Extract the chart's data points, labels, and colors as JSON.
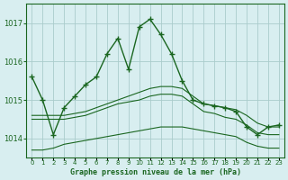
{
  "title": "Graphe pression niveau de la mer (hPa)",
  "background_color": "#d8eef0",
  "grid_color": "#aacccc",
  "line_color": "#1a6620",
  "x_labels": [
    "0",
    "1",
    "2",
    "3",
    "4",
    "5",
    "6",
    "7",
    "8",
    "9",
    "10",
    "11",
    "12",
    "13",
    "14",
    "15",
    "16",
    "17",
    "18",
    "19",
    "20",
    "21",
    "22",
    "23"
  ],
  "ylim": [
    1013.5,
    1017.5
  ],
  "yticks": [
    1014,
    1015,
    1016,
    1017
  ],
  "main_series": [
    1015.6,
    1015.0,
    1014.1,
    1014.8,
    1015.1,
    1015.4,
    1015.6,
    1016.2,
    1016.6,
    1015.8,
    1016.9,
    1017.1,
    1016.7,
    1016.2,
    1015.5,
    1015.0,
    1014.9,
    1014.85,
    1014.8,
    1014.7,
    1014.3,
    1014.1,
    1014.3,
    1014.35
  ],
  "flat_series_top": [
    1014.6,
    1014.6,
    1014.6,
    1014.6,
    1014.65,
    1014.7,
    1014.8,
    1014.9,
    1015.0,
    1015.1,
    1015.2,
    1015.3,
    1015.35,
    1015.35,
    1015.3,
    1015.1,
    1014.9,
    1014.85,
    1014.8,
    1014.75,
    1014.6,
    1014.4,
    1014.3,
    1014.3
  ],
  "flat_series_mid": [
    1014.5,
    1014.5,
    1014.5,
    1014.5,
    1014.55,
    1014.6,
    1014.7,
    1014.8,
    1014.9,
    1014.95,
    1015.0,
    1015.1,
    1015.15,
    1015.15,
    1015.1,
    1014.9,
    1014.7,
    1014.65,
    1014.55,
    1014.5,
    1014.35,
    1014.15,
    1014.1,
    1014.1
  ],
  "flat_series_bot": [
    1013.7,
    1013.7,
    1013.75,
    1013.85,
    1013.9,
    1013.95,
    1014.0,
    1014.05,
    1014.1,
    1014.15,
    1014.2,
    1014.25,
    1014.3,
    1014.3,
    1014.3,
    1014.25,
    1014.2,
    1014.15,
    1014.1,
    1014.05,
    1013.9,
    1013.8,
    1013.75,
    1013.75
  ]
}
